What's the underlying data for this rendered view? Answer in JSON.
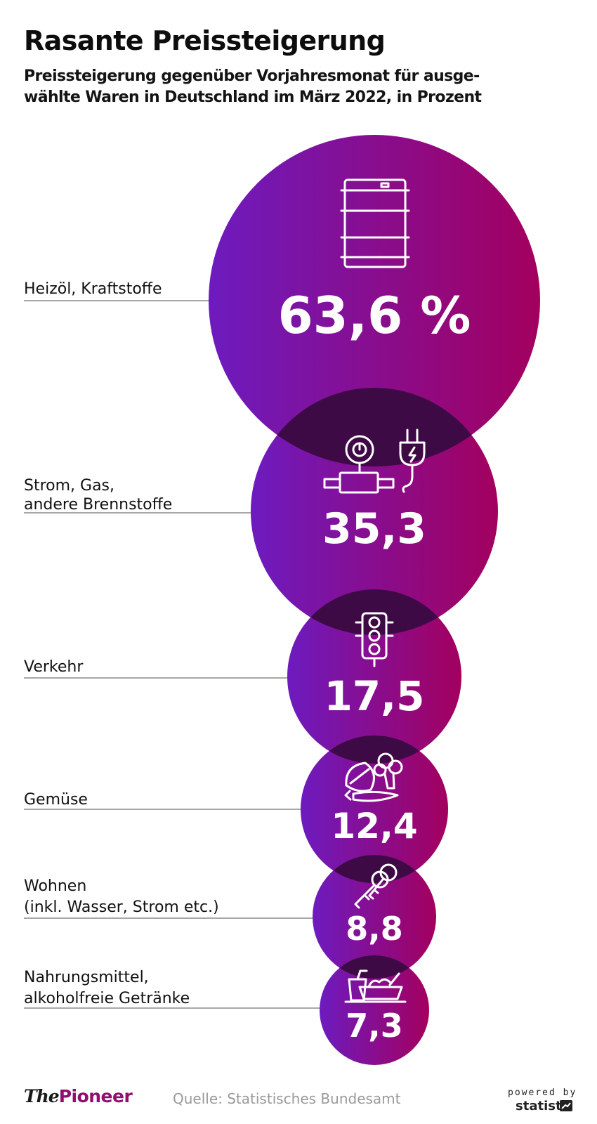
{
  "title": "Rasante Preissteigerung",
  "subtitle_lines": [
    "Preissteigerung gegenüber Vorjahresmonat für ausge-",
    "wählte Waren in Deutschland im März 2022, in Prozent"
  ],
  "chart_data": {
    "type": "bubble",
    "unit": "%",
    "categories": [
      [
        "Heizöl, Kraftstoffe"
      ],
      [
        "Strom, Gas,",
        "andere Brennstoffe"
      ],
      [
        "Verkehr"
      ],
      [
        "Gemüse"
      ],
      [
        "Wohnen",
        "(inkl. Wasser, Strom etc.)"
      ],
      [
        "Nahrungsmittel,",
        "alkoholfreie Getränke"
      ]
    ],
    "values": [
      63.6,
      35.3,
      17.5,
      12.4,
      8.8,
      7.3
    ],
    "value_labels": [
      "63,6 %",
      "35,3",
      "17,5",
      "12,4",
      "8,8",
      "7,3"
    ],
    "icons": [
      "oil-barrel-icon",
      "gas-meter-plug-icon",
      "traffic-light-icon",
      "vegetables-icon",
      "keys-icon",
      "groceries-icon"
    ],
    "colors": {
      "gradient_start": "#6d1bbf",
      "gradient_end": "#a3005e",
      "overlap": "#3e0a45"
    }
  },
  "footer": {
    "logo_the": "The",
    "logo_pioneer": "Pioneer",
    "source": "Quelle: Statistisches Bundesamt",
    "powered_by": "powered by",
    "statista": "statista"
  }
}
